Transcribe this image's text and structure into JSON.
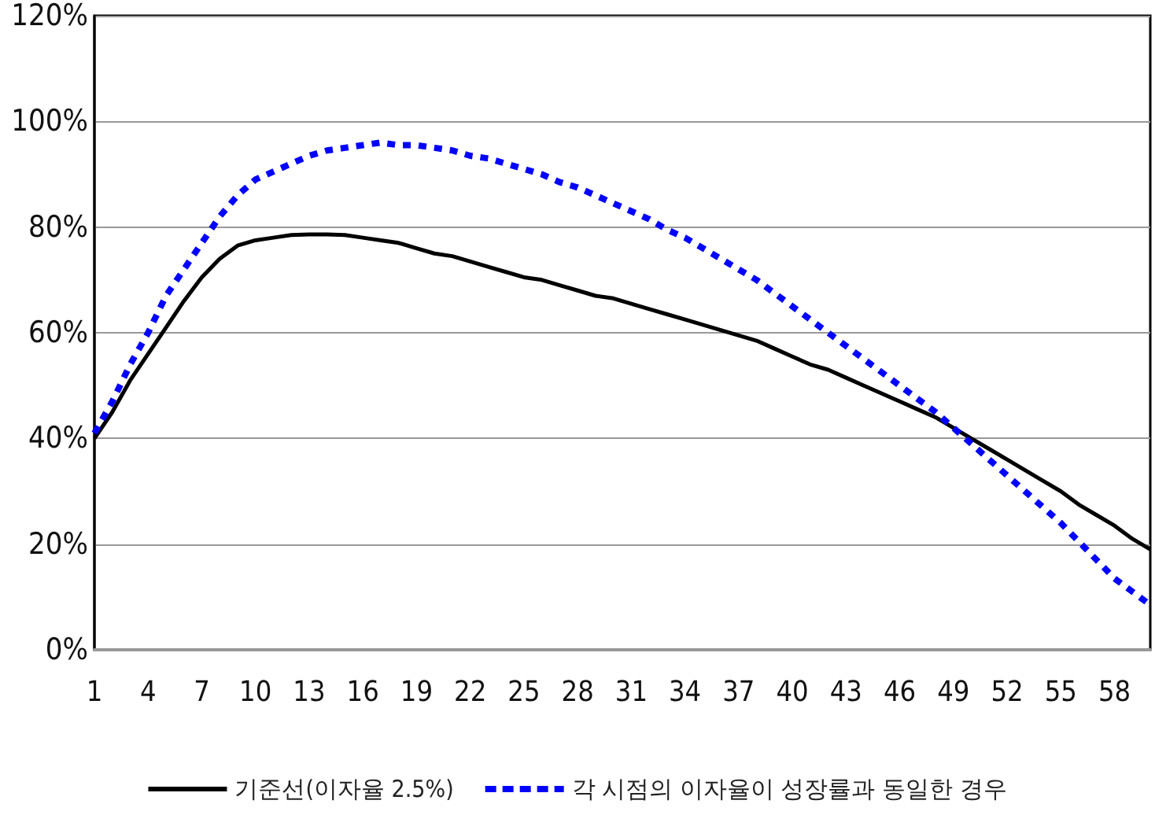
{
  "chart_data": {
    "type": "line",
    "categories": [
      "1",
      null,
      null,
      "4",
      null,
      null,
      "7",
      null,
      null,
      "10",
      null,
      null,
      "13",
      null,
      null,
      "16",
      null,
      null,
      "19",
      null,
      null,
      "22",
      null,
      null,
      "25",
      null,
      null,
      "28",
      null,
      null,
      "31",
      null,
      null,
      "34",
      null,
      null,
      "37",
      null,
      null,
      "40",
      null,
      null,
      "43",
      null,
      null,
      "46",
      null,
      null,
      "49",
      null,
      null,
      "52",
      null,
      null,
      "55",
      null,
      null,
      "58",
      null,
      null
    ],
    "series": [
      {
        "name": "기준선(이자율 2.5%)",
        "color": "#000000",
        "line_style": "solid",
        "values": [
          40,
          45,
          51,
          56,
          61,
          66,
          70.5,
          74,
          76.5,
          77.5,
          78,
          78.5,
          78.6,
          78.6,
          78.5,
          78,
          77.5,
          77,
          76,
          75,
          74.5,
          73.5,
          72.5,
          71.5,
          70.5,
          70,
          69,
          68,
          67,
          66.5,
          65.5,
          64.5,
          63.5,
          62.5,
          61.5,
          60.5,
          59.5,
          58.5,
          57,
          55.5,
          54,
          53,
          51.5,
          50,
          48.5,
          47,
          45.5,
          44,
          42,
          40,
          38,
          36,
          34,
          32,
          30,
          27.5,
          25.5,
          23.5,
          21,
          19
        ]
      },
      {
        "name": "각 시점의 이자율이 성장률과 동일한 경우",
        "color": "#0000ff",
        "line_style": "dashed",
        "values": [
          41,
          47,
          54,
          60,
          67,
          72,
          77,
          82,
          86,
          89,
          90.5,
          92,
          93.5,
          94.5,
          95,
          95.5,
          96,
          95.5,
          95.5,
          95,
          94.5,
          93.5,
          93,
          92,
          91,
          90,
          88.5,
          87.5,
          86,
          84.5,
          83,
          81.5,
          79.5,
          78,
          76,
          74,
          72,
          70,
          67.5,
          65,
          62.5,
          60,
          57.5,
          55,
          52.5,
          50,
          47.5,
          45,
          42,
          39,
          36,
          33,
          30,
          27,
          24,
          20.5,
          17,
          13.5,
          11,
          8.5
        ]
      }
    ],
    "ylim": [
      0,
      120
    ],
    "yticks": [
      {
        "value": 0,
        "label": "0%"
      },
      {
        "value": 20,
        "label": "20%"
      },
      {
        "value": 40,
        "label": "40%"
      },
      {
        "value": 60,
        "label": "60%"
      },
      {
        "value": 80,
        "label": "80%"
      },
      {
        "value": 100,
        "label": "100%"
      },
      {
        "value": 120,
        "label": "120%"
      }
    ],
    "grid": "y",
    "legend": "bottom",
    "marker": "none"
  }
}
